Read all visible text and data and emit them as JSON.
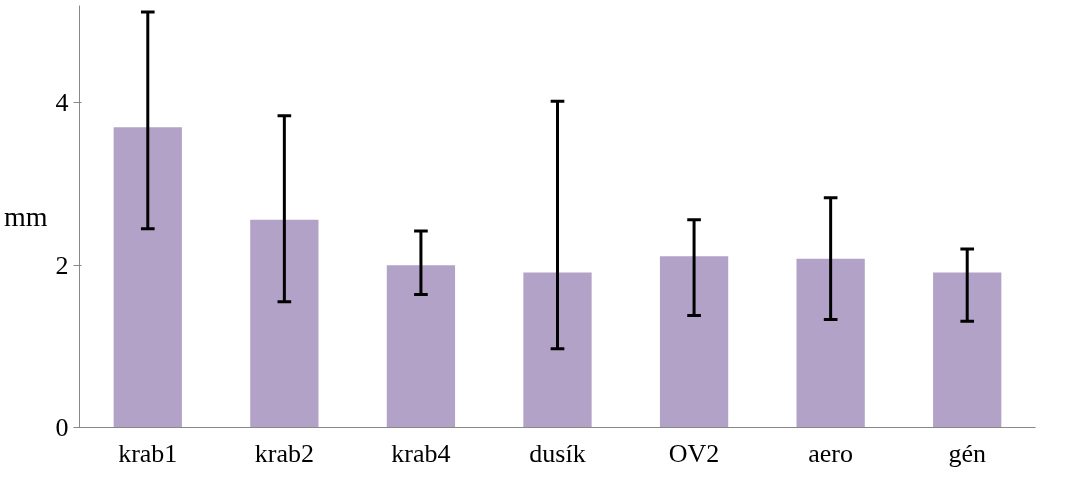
{
  "chart_data": {
    "type": "bar",
    "ylabel": "mm",
    "categories": [
      "krab1",
      "krab2",
      "krab4",
      "dusík",
      "OV2",
      "aero",
      "gén"
    ],
    "values": [
      3.7,
      2.56,
      2.0,
      1.91,
      2.11,
      2.08,
      1.91
    ],
    "errors": [
      [
        2.45,
        5.12
      ],
      [
        1.55,
        3.84
      ],
      [
        1.64,
        2.42
      ],
      [
        0.97,
        4.02
      ],
      [
        1.38,
        2.56
      ],
      [
        1.33,
        2.83
      ],
      [
        1.31,
        2.2
      ]
    ],
    "color": "#b3a2c7",
    "ylim": [
      0,
      5.2
    ],
    "yticks": [
      0,
      2,
      4
    ],
    "grid": false
  }
}
